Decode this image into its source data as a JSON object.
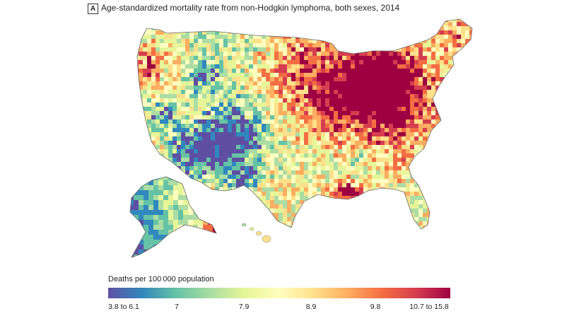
{
  "panel": {
    "label": "A"
  },
  "title": "Age-standardized mortality rate from non-Hodgkin lymphoma, both sexes, 2014",
  "legend": {
    "title": "Deaths per 100 000 population",
    "ticks": [
      "3.8 to 6.1",
      "7",
      "7.9",
      "8.9",
      "9.8",
      "10.7 to 15.8"
    ],
    "colors": [
      "#5e4fa2",
      "#3288bd",
      "#66c2a5",
      "#abdda4",
      "#e6f598",
      "#ffffbf",
      "#fee08b",
      "#fdae61",
      "#f46d43",
      "#d53e4f",
      "#9e0142"
    ]
  },
  "map": {
    "regions": [
      "contiguous-us",
      "alaska",
      "hawaii"
    ],
    "highlight_colors": {
      "low": "#5e4fa2",
      "mid": "#ffffbf",
      "high": "#9e0142"
    }
  }
}
